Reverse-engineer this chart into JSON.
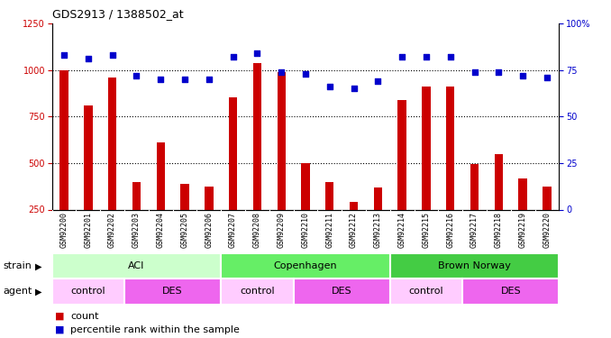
{
  "title": "GDS2913 / 1388502_at",
  "samples": [
    "GSM92200",
    "GSM92201",
    "GSM92202",
    "GSM92203",
    "GSM92204",
    "GSM92205",
    "GSM92206",
    "GSM92207",
    "GSM92208",
    "GSM92209",
    "GSM92210",
    "GSM92211",
    "GSM92212",
    "GSM92213",
    "GSM92214",
    "GSM92215",
    "GSM92216",
    "GSM92217",
    "GSM92218",
    "GSM92219",
    "GSM92220"
  ],
  "counts": [
    1000,
    810,
    960,
    400,
    610,
    390,
    375,
    855,
    1040,
    990,
    500,
    400,
    290,
    370,
    840,
    910,
    910,
    495,
    550,
    415,
    375
  ],
  "percentiles": [
    83,
    81,
    83,
    72,
    70,
    70,
    70,
    82,
    84,
    74,
    73,
    66,
    65,
    69,
    82,
    82,
    82,
    74,
    74,
    72,
    71
  ],
  "bar_color": "#cc0000",
  "dot_color": "#0000cc",
  "ylim_left": [
    250,
    1250
  ],
  "ylim_right": [
    0,
    100
  ],
  "yticks_left": [
    250,
    500,
    750,
    1000,
    1250
  ],
  "yticks_right": [
    0,
    25,
    50,
    75,
    100
  ],
  "grid_values": [
    500,
    750,
    1000
  ],
  "strain_groups": [
    {
      "label": "ACI",
      "start": 0,
      "end": 7,
      "color": "#ccffcc"
    },
    {
      "label": "Copenhagen",
      "start": 7,
      "end": 14,
      "color": "#66ee66"
    },
    {
      "label": "Brown Norway",
      "start": 14,
      "end": 21,
      "color": "#44cc44"
    }
  ],
  "agent_groups": [
    {
      "label": "control",
      "start": 0,
      "end": 3,
      "color": "#ffccff"
    },
    {
      "label": "DES",
      "start": 3,
      "end": 7,
      "color": "#ee66ee"
    },
    {
      "label": "control",
      "start": 7,
      "end": 10,
      "color": "#ffccff"
    },
    {
      "label": "DES",
      "start": 10,
      "end": 14,
      "color": "#ee66ee"
    },
    {
      "label": "control",
      "start": 14,
      "end": 17,
      "color": "#ffccff"
    },
    {
      "label": "DES",
      "start": 17,
      "end": 21,
      "color": "#ee66ee"
    }
  ],
  "strain_label": "strain",
  "agent_label": "agent",
  "count_label": "count",
  "percentile_label": "percentile rank within the sample",
  "left_axis_color": "#cc0000",
  "right_axis_color": "#0000cc",
  "xticklabel_bg": "#dddddd",
  "bar_width": 0.35
}
